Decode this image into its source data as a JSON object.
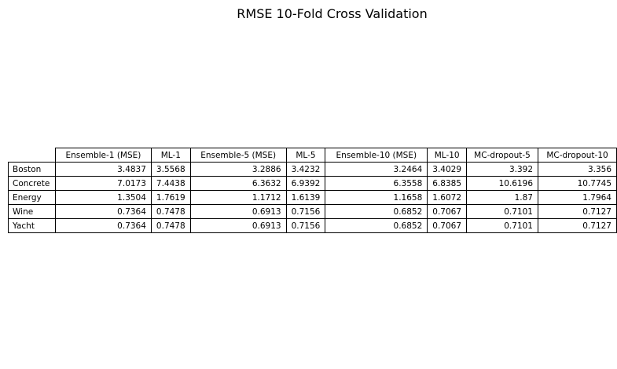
{
  "chart_data": {
    "type": "table",
    "title": "RMSE 10-Fold Cross Validation",
    "columns": [
      "Ensemble-1 (MSE)",
      "ML-1",
      "Ensemble-5 (MSE)",
      "ML-5",
      "Ensemble-10 (MSE)",
      "ML-10",
      "MC-dropout-5",
      "MC-dropout-10"
    ],
    "rows": [
      {
        "label": "Boston",
        "values": [
          "3.4837",
          "3.5568",
          "3.2886",
          "3.4232",
          "3.2464",
          "3.4029",
          "3.392",
          "3.356"
        ]
      },
      {
        "label": "Concrete",
        "values": [
          "7.0173",
          "7.4438",
          "6.3632",
          "6.9392",
          "6.3558",
          "6.8385",
          "10.6196",
          "10.7745"
        ]
      },
      {
        "label": "Energy",
        "values": [
          "1.3504",
          "1.7619",
          "1.1712",
          "1.6139",
          "1.1658",
          "1.6072",
          "1.87",
          "1.7964"
        ]
      },
      {
        "label": "Wine",
        "values": [
          "0.7364",
          "0.7478",
          "0.6913",
          "0.7156",
          "0.6852",
          "0.7067",
          "0.7101",
          "0.7127"
        ]
      },
      {
        "label": "Yacht",
        "values": [
          "0.7364",
          "0.7478",
          "0.6913",
          "0.7156",
          "0.6852",
          "0.7067",
          "0.7101",
          "0.7127"
        ]
      }
    ]
  }
}
